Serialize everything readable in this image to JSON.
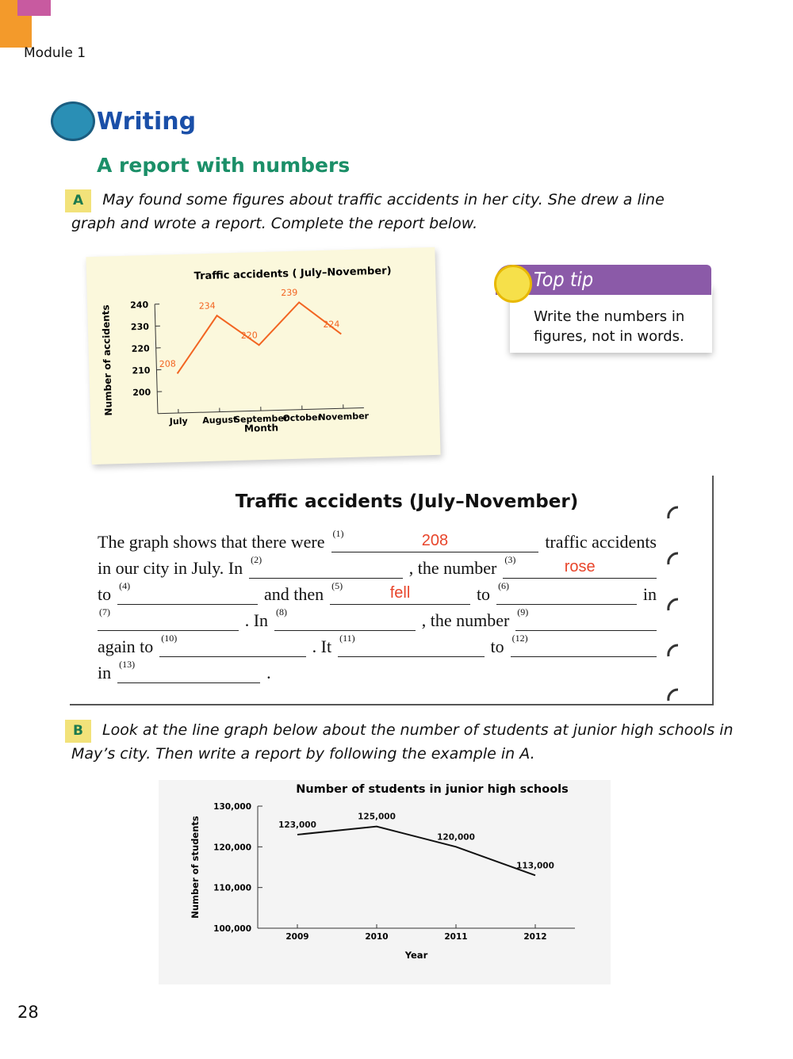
{
  "header": {
    "module": "Module 1",
    "page_number": "28"
  },
  "section": {
    "title": "Writing",
    "subtitle": "A report with numbers"
  },
  "task_a": {
    "label": "A",
    "instruction": "May found some figures about traffic accidents in her city. She drew a line graph and wrote a report. Complete the report below."
  },
  "top_tip": {
    "title": "Top tip",
    "text": "Write the numbers in figures, not in words."
  },
  "report": {
    "title": "Traffic accidents (July–November)",
    "lines": [
      [
        "The graph shows that there were",
        {
          "n": "(1)",
          "answer": "208"
        },
        "traffic accidents"
      ],
      [
        "in our city in July. In",
        {
          "n": "(2)"
        },
        ", the number",
        {
          "n": "(3)",
          "answer": "rose"
        }
      ],
      [
        "to",
        {
          "n": "(4)"
        },
        "and then",
        {
          "n": "(5)",
          "answer": "fell"
        },
        "to",
        {
          "n": "(6)"
        },
        "in"
      ],
      [
        {
          "n": "(7)"
        },
        ". In",
        {
          "n": "(8)"
        },
        ", the number",
        {
          "n": "(9)"
        }
      ],
      [
        "again to",
        {
          "n": "(10)"
        },
        ". It",
        {
          "n": "(11)"
        },
        "to",
        {
          "n": "(12)"
        }
      ],
      [
        "in",
        {
          "n": "(13)"
        },
        "."
      ]
    ]
  },
  "task_b": {
    "label": "B",
    "instruction": "Look at the line graph below about the number of students at junior high schools in May’s city. Then write a report by following the example in A."
  },
  "chart_data": [
    {
      "type": "line",
      "title": "Traffic accidents ( July–November)",
      "xlabel": "Month",
      "ylabel": "Number of accidents",
      "categories": [
        "July",
        "August",
        "September",
        "October",
        "November"
      ],
      "values": [
        208,
        234,
        220,
        239,
        224
      ],
      "color": "#f26522",
      "ylim": [
        190,
        240
      ],
      "yticks": [
        200,
        210,
        220,
        230,
        240
      ],
      "data_labels": true,
      "grid": false
    },
    {
      "type": "line",
      "title": "Number of students in junior high schools",
      "xlabel": "Year",
      "ylabel": "Number of students",
      "categories": [
        "2009",
        "2010",
        "2011",
        "2012"
      ],
      "values": [
        123000,
        125000,
        120000,
        113000
      ],
      "value_labels": [
        "123,000",
        "125,000",
        "120,000",
        "113,000"
      ],
      "color": "#111111",
      "ylim": [
        100000,
        130000
      ],
      "yticks": [
        {
          "value": 100000,
          "label": "100,000"
        },
        {
          "value": 110000,
          "label": "110,000"
        },
        {
          "value": 120000,
          "label": "120,000"
        },
        {
          "value": 130000,
          "label": "130,000"
        }
      ],
      "data_labels": true,
      "grid": false
    }
  ]
}
